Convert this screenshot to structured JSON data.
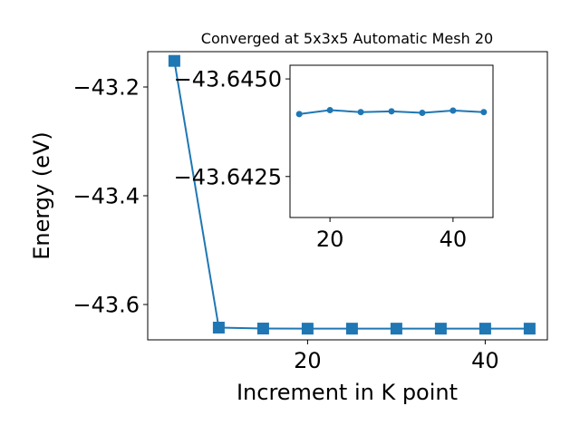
{
  "chart_data": [
    {
      "type": "line",
      "title": "Converged at 5x3x5 Automatic Mesh 20",
      "xlabel": "Increment in K point",
      "ylabel": "Energy (eV)",
      "xlim": [
        2.0,
        47.0
      ],
      "ylim": [
        -43.665,
        -43.135
      ],
      "xticks": [
        20,
        40
      ],
      "xtick_labels": [
        "20",
        "40"
      ],
      "yticks": [
        -43.2,
        -43.4,
        -43.6
      ],
      "ytick_labels": [
        "−43.2",
        "−43.4",
        "−43.6"
      ],
      "grid": false,
      "marker": "square",
      "color": "#1f77b4",
      "series": [
        {
          "x": [
            5,
            10,
            15,
            20,
            25,
            30,
            35,
            40,
            45
          ],
          "y": [
            -43.152,
            -43.6425,
            -43.6442,
            -43.6444,
            -43.6444,
            -43.6444,
            -43.6444,
            -43.6444,
            -43.6444
          ]
        }
      ]
    },
    {
      "type": "line",
      "title": "",
      "xlim": [
        13.5,
        46.5
      ],
      "ylim": [
        -43.64145,
        -43.64535
      ],
      "xticks": [
        20,
        40
      ],
      "xtick_labels": [
        "20",
        "40"
      ],
      "yticks": [
        -43.645,
        -43.6425
      ],
      "ytick_labels": [
        "−43.6450",
        "−43.6425"
      ],
      "grid": false,
      "marker": "circle",
      "color": "#1f77b4",
      "series": [
        {
          "x": [
            15,
            20,
            25,
            30,
            35,
            40,
            45
          ],
          "y": [
            -43.6441,
            -43.6442,
            -43.64415,
            -43.64417,
            -43.64413,
            -43.64419,
            -43.64415
          ]
        }
      ]
    }
  ]
}
